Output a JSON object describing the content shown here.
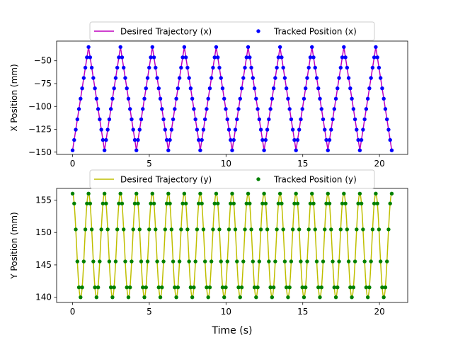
{
  "chart_data": [
    {
      "type": "line",
      "ylabel": "X Position (mm)",
      "xlabel": "",
      "xlim": [
        -1.04,
        21.84
      ],
      "ylim": [
        -152.5,
        -28.5
      ],
      "xticks": [
        0,
        5,
        10,
        15,
        20
      ],
      "yticks": [
        -150,
        -125,
        -100,
        -75,
        -50
      ],
      "grid": false,
      "legend_position": "top-center",
      "signal": {
        "form": "triangle",
        "t_start": 0,
        "t_end": 20.8,
        "min": -148,
        "max": -35,
        "period": 2.08,
        "sample_step": 0.104
      },
      "series": [
        {
          "name": "Desired Trajectory (x)",
          "style": "line",
          "color": "#bf00bf"
        },
        {
          "name": "Tracked Position (x)",
          "style": "markers",
          "color": "#0000ff"
        }
      ]
    },
    {
      "type": "line",
      "ylabel": "Y Position (mm)",
      "xlabel": "Time (s)",
      "xlim": [
        -1.04,
        21.84
      ],
      "ylim": [
        139.2,
        156.8
      ],
      "xticks": [
        0,
        5,
        10,
        15,
        20
      ],
      "yticks": [
        140,
        145,
        150,
        155
      ],
      "grid": false,
      "legend_position": "top-center",
      "signal": {
        "form": "cosine",
        "t_start": 0,
        "t_end": 20.8,
        "min": 140,
        "max": 156,
        "period": 1.04,
        "sample_step": 0.104
      },
      "series": [
        {
          "name": "Desired Trajectory (y)",
          "style": "line",
          "color": "#bfbf00"
        },
        {
          "name": "Tracked Position (y)",
          "style": "markers",
          "color": "#008000"
        }
      ]
    }
  ]
}
